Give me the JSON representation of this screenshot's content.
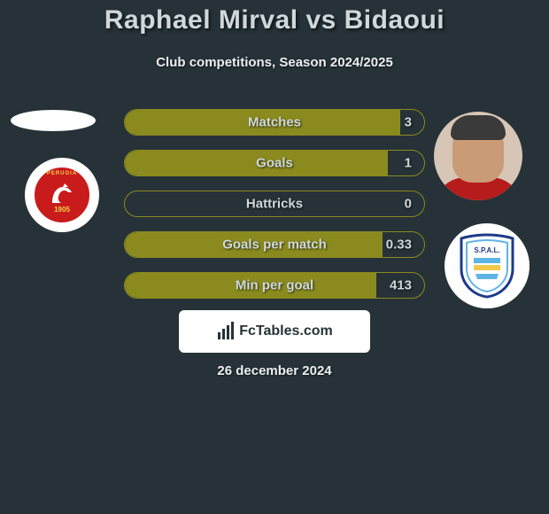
{
  "title": "Raphael Mirval vs Bidaoui",
  "subtitle": "Club competitions, Season 2024/2025",
  "date": "26 december 2024",
  "colors": {
    "background": "#263238",
    "bar_border": "#8a8a1e",
    "bar_fill": "#8a8a1e",
    "text_light": "#cfd8dc",
    "brand_bg": "#ffffff"
  },
  "left_side": {
    "club": "Perugia",
    "crest_year": "1905",
    "crest_text": "PERUGIA"
  },
  "right_side": {
    "club": "SPAL",
    "crest_text": "S.P.A.L."
  },
  "bars": [
    {
      "label": "Matches",
      "value": "3",
      "fill_pct": 92
    },
    {
      "label": "Goals",
      "value": "1",
      "fill_pct": 88
    },
    {
      "label": "Hattricks",
      "value": "0",
      "fill_pct": 0
    },
    {
      "label": "Goals per match",
      "value": "0.33",
      "fill_pct": 86
    },
    {
      "label": "Min per goal",
      "value": "413",
      "fill_pct": 84
    }
  ],
  "brand": {
    "text": "FcTables.com"
  }
}
